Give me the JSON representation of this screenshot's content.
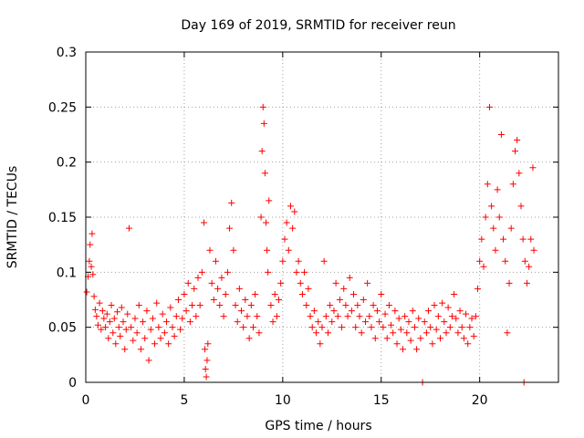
{
  "chart_data": {
    "type": "scatter",
    "title": "Day 169 of 2019, SRMTID for receiver reun",
    "xlabel": "GPS time / hours",
    "ylabel": "SRMTID / TECUs",
    "xlim": [
      0,
      24
    ],
    "ylim": [
      0,
      0.3
    ],
    "xticks": [
      0,
      5,
      10,
      15,
      20
    ],
    "yticks": [
      0,
      0.05,
      0.1,
      0.15,
      0.2,
      0.25,
      0.3
    ],
    "xtick_labels": [
      "0",
      "5",
      "10",
      "15",
      "20"
    ],
    "ytick_labels": [
      "0",
      "0.05",
      "0.1",
      "0.15",
      "0.2",
      "0.25",
      "0.3"
    ],
    "grid": true,
    "marker": "+",
    "color": "#ff0000",
    "series": [
      {
        "name": "SRMTID",
        "points": [
          [
            0.05,
            0.082
          ],
          [
            0.12,
            0.096
          ],
          [
            0.18,
            0.11
          ],
          [
            0.22,
            0.125
          ],
          [
            0.28,
            0.105
          ],
          [
            0.32,
            0.135
          ],
          [
            0.36,
            0.098
          ],
          [
            0.42,
            0.078
          ],
          [
            0.48,
            0.066
          ],
          [
            0.55,
            0.06
          ],
          [
            0.62,
            0.052
          ],
          [
            0.7,
            0.072
          ],
          [
            0.78,
            0.048
          ],
          [
            0.85,
            0.065
          ],
          [
            0.92,
            0.058
          ],
          [
            1.0,
            0.05
          ],
          [
            1.08,
            0.062
          ],
          [
            1.15,
            0.04
          ],
          [
            1.22,
            0.055
          ],
          [
            1.3,
            0.07
          ],
          [
            1.38,
            0.045
          ],
          [
            1.45,
            0.058
          ],
          [
            1.52,
            0.035
          ],
          [
            1.6,
            0.064
          ],
          [
            1.68,
            0.05
          ],
          [
            1.75,
            0.042
          ],
          [
            1.82,
            0.068
          ],
          [
            1.9,
            0.055
          ],
          [
            1.98,
            0.03
          ],
          [
            2.05,
            0.048
          ],
          [
            2.12,
            0.062
          ],
          [
            2.2,
            0.14
          ],
          [
            2.3,
            0.05
          ],
          [
            2.4,
            0.038
          ],
          [
            2.5,
            0.058
          ],
          [
            2.6,
            0.045
          ],
          [
            2.7,
            0.07
          ],
          [
            2.8,
            0.03
          ],
          [
            2.9,
            0.055
          ],
          [
            3.0,
            0.04
          ],
          [
            3.1,
            0.065
          ],
          [
            3.2,
            0.02
          ],
          [
            3.3,
            0.048
          ],
          [
            3.4,
            0.058
          ],
          [
            3.5,
            0.035
          ],
          [
            3.6,
            0.072
          ],
          [
            3.7,
            0.05
          ],
          [
            3.8,
            0.04
          ],
          [
            3.9,
            0.062
          ],
          [
            4.0,
            0.045
          ],
          [
            4.1,
            0.055
          ],
          [
            4.2,
            0.035
          ],
          [
            4.3,
            0.068
          ],
          [
            4.4,
            0.05
          ],
          [
            4.5,
            0.042
          ],
          [
            4.6,
            0.06
          ],
          [
            4.7,
            0.075
          ],
          [
            4.8,
            0.048
          ],
          [
            4.9,
            0.058
          ],
          [
            5.0,
            0.08
          ],
          [
            5.1,
            0.065
          ],
          [
            5.2,
            0.09
          ],
          [
            5.3,
            0.055
          ],
          [
            5.4,
            0.07
          ],
          [
            5.5,
            0.085
          ],
          [
            5.6,
            0.06
          ],
          [
            5.7,
            0.095
          ],
          [
            5.8,
            0.07
          ],
          [
            5.9,
            0.1
          ],
          [
            6.0,
            0.145
          ],
          [
            6.05,
            0.03
          ],
          [
            6.08,
            0.012
          ],
          [
            6.12,
            0.005
          ],
          [
            6.16,
            0.02
          ],
          [
            6.2,
            0.035
          ],
          [
            6.3,
            0.12
          ],
          [
            6.4,
            0.09
          ],
          [
            6.5,
            0.075
          ],
          [
            6.6,
            0.11
          ],
          [
            6.7,
            0.085
          ],
          [
            6.8,
            0.07
          ],
          [
            6.9,
            0.095
          ],
          [
            7.0,
            0.06
          ],
          [
            7.1,
            0.08
          ],
          [
            7.2,
            0.1
          ],
          [
            7.3,
            0.14
          ],
          [
            7.4,
            0.163
          ],
          [
            7.5,
            0.12
          ],
          [
            7.6,
            0.07
          ],
          [
            7.7,
            0.055
          ],
          [
            7.8,
            0.085
          ],
          [
            7.9,
            0.065
          ],
          [
            8.0,
            0.05
          ],
          [
            8.1,
            0.075
          ],
          [
            8.2,
            0.06
          ],
          [
            8.3,
            0.04
          ],
          [
            8.4,
            0.07
          ],
          [
            8.5,
            0.05
          ],
          [
            8.6,
            0.08
          ],
          [
            8.7,
            0.06
          ],
          [
            8.8,
            0.045
          ],
          [
            8.9,
            0.15
          ],
          [
            8.95,
            0.21
          ],
          [
            9.0,
            0.25
          ],
          [
            9.05,
            0.235
          ],
          [
            9.1,
            0.19
          ],
          [
            9.15,
            0.145
          ],
          [
            9.2,
            0.12
          ],
          [
            9.25,
            0.1
          ],
          [
            9.3,
            0.165
          ],
          [
            9.4,
            0.07
          ],
          [
            9.5,
            0.055
          ],
          [
            9.6,
            0.08
          ],
          [
            9.7,
            0.06
          ],
          [
            9.8,
            0.075
          ],
          [
            9.9,
            0.09
          ],
          [
            10.0,
            0.11
          ],
          [
            10.1,
            0.13
          ],
          [
            10.2,
            0.145
          ],
          [
            10.3,
            0.12
          ],
          [
            10.4,
            0.16
          ],
          [
            10.5,
            0.14
          ],
          [
            10.6,
            0.155
          ],
          [
            10.7,
            0.1
          ],
          [
            10.8,
            0.11
          ],
          [
            10.9,
            0.09
          ],
          [
            11.0,
            0.08
          ],
          [
            11.1,
            0.1
          ],
          [
            11.2,
            0.07
          ],
          [
            11.3,
            0.085
          ],
          [
            11.4,
            0.06
          ],
          [
            11.5,
            0.05
          ],
          [
            11.6,
            0.065
          ],
          [
            11.7,
            0.045
          ],
          [
            11.8,
            0.055
          ],
          [
            11.9,
            0.035
          ],
          [
            12.0,
            0.05
          ],
          [
            12.1,
            0.11
          ],
          [
            12.2,
            0.06
          ],
          [
            12.3,
            0.045
          ],
          [
            12.4,
            0.07
          ],
          [
            12.5,
            0.055
          ],
          [
            12.6,
            0.065
          ],
          [
            12.7,
            0.09
          ],
          [
            12.8,
            0.06
          ],
          [
            12.9,
            0.075
          ],
          [
            13.0,
            0.05
          ],
          [
            13.1,
            0.085
          ],
          [
            13.2,
            0.07
          ],
          [
            13.3,
            0.06
          ],
          [
            13.4,
            0.095
          ],
          [
            13.5,
            0.065
          ],
          [
            13.6,
            0.08
          ],
          [
            13.7,
            0.05
          ],
          [
            13.8,
            0.07
          ],
          [
            13.9,
            0.06
          ],
          [
            14.0,
            0.045
          ],
          [
            14.1,
            0.075
          ],
          [
            14.2,
            0.055
          ],
          [
            14.3,
            0.09
          ],
          [
            14.4,
            0.06
          ],
          [
            14.5,
            0.05
          ],
          [
            14.6,
            0.07
          ],
          [
            14.7,
            0.04
          ],
          [
            14.8,
            0.065
          ],
          [
            14.9,
            0.055
          ],
          [
            15.0,
            0.08
          ],
          [
            15.1,
            0.05
          ],
          [
            15.2,
            0.062
          ],
          [
            15.3,
            0.04
          ],
          [
            15.4,
            0.07
          ],
          [
            15.5,
            0.052
          ],
          [
            15.6,
            0.045
          ],
          [
            15.7,
            0.065
          ],
          [
            15.8,
            0.035
          ],
          [
            15.9,
            0.058
          ],
          [
            16.0,
            0.048
          ],
          [
            16.1,
            0.03
          ],
          [
            16.2,
            0.06
          ],
          [
            16.3,
            0.045
          ],
          [
            16.4,
            0.055
          ],
          [
            16.5,
            0.038
          ],
          [
            16.6,
            0.065
          ],
          [
            16.7,
            0.05
          ],
          [
            16.8,
            0.03
          ],
          [
            16.9,
            0.058
          ],
          [
            17.0,
            0.04
          ],
          [
            17.1,
            0.0
          ],
          [
            17.2,
            0.055
          ],
          [
            17.3,
            0.045
          ],
          [
            17.4,
            0.065
          ],
          [
            17.5,
            0.05
          ],
          [
            17.6,
            0.035
          ],
          [
            17.7,
            0.07
          ],
          [
            17.8,
            0.048
          ],
          [
            17.9,
            0.06
          ],
          [
            18.0,
            0.04
          ],
          [
            18.1,
            0.072
          ],
          [
            18.2,
            0.055
          ],
          [
            18.3,
            0.045
          ],
          [
            18.4,
            0.068
          ],
          [
            18.5,
            0.05
          ],
          [
            18.6,
            0.06
          ],
          [
            18.7,
            0.08
          ],
          [
            18.8,
            0.058
          ],
          [
            18.9,
            0.045
          ],
          [
            19.0,
            0.065
          ],
          [
            19.1,
            0.05
          ],
          [
            19.2,
            0.04
          ],
          [
            19.3,
            0.062
          ],
          [
            19.4,
            0.035
          ],
          [
            19.5,
            0.05
          ],
          [
            19.6,
            0.058
          ],
          [
            19.7,
            0.042
          ],
          [
            19.8,
            0.06
          ],
          [
            19.9,
            0.085
          ],
          [
            20.0,
            0.11
          ],
          [
            20.1,
            0.13
          ],
          [
            20.2,
            0.105
          ],
          [
            20.3,
            0.15
          ],
          [
            20.4,
            0.18
          ],
          [
            20.5,
            0.25
          ],
          [
            20.6,
            0.16
          ],
          [
            20.7,
            0.14
          ],
          [
            20.8,
            0.12
          ],
          [
            20.9,
            0.175
          ],
          [
            21.0,
            0.15
          ],
          [
            21.1,
            0.225
          ],
          [
            21.2,
            0.13
          ],
          [
            21.3,
            0.11
          ],
          [
            21.4,
            0.045
          ],
          [
            21.5,
            0.09
          ],
          [
            21.6,
            0.14
          ],
          [
            21.7,
            0.18
          ],
          [
            21.8,
            0.21
          ],
          [
            21.9,
            0.22
          ],
          [
            22.0,
            0.19
          ],
          [
            22.1,
            0.16
          ],
          [
            22.2,
            0.13
          ],
          [
            22.25,
            0.0
          ],
          [
            22.3,
            0.11
          ],
          [
            22.4,
            0.09
          ],
          [
            22.5,
            0.105
          ],
          [
            22.6,
            0.13
          ],
          [
            22.7,
            0.195
          ],
          [
            22.75,
            0.12
          ]
        ]
      }
    ]
  }
}
